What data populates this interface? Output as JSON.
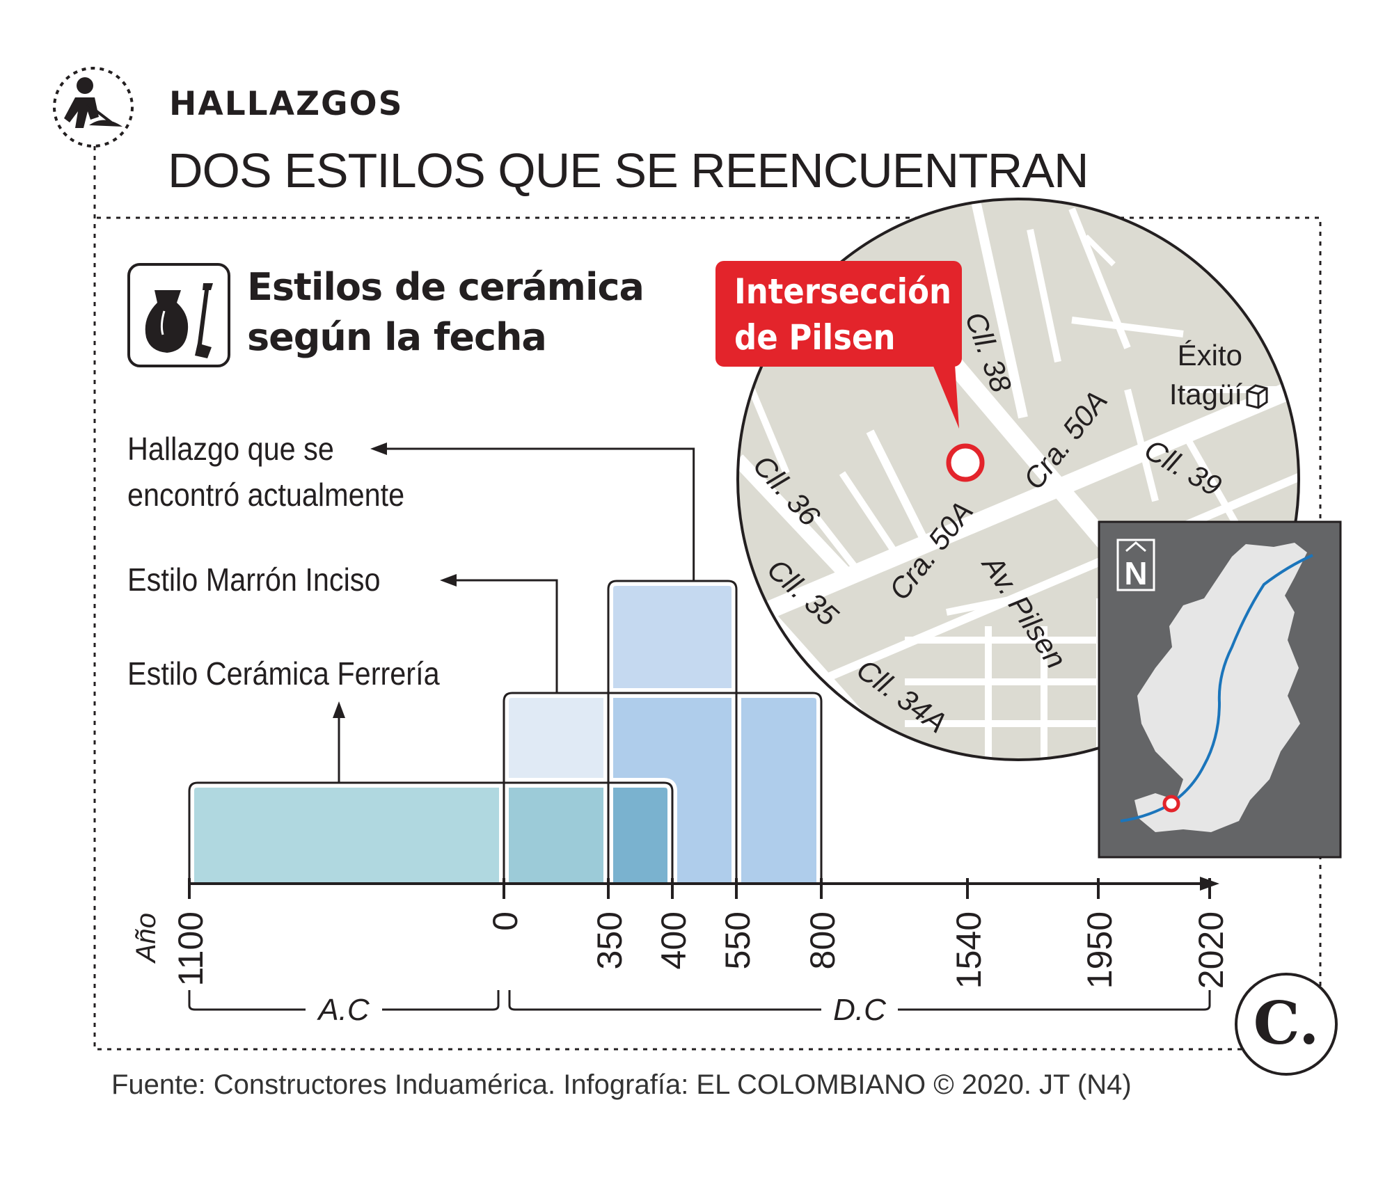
{
  "header": {
    "kicker": "HALLAZGOS",
    "headline": "DOS ESTILOS QUE SE REENCUENTRAN"
  },
  "subtitle": {
    "line1": "Estilos de cerámica",
    "line2": "según la fecha"
  },
  "legend": {
    "hallazgo_line1": "Hallazgo que se",
    "hallazgo_line2": "encontró actualmente",
    "marron": "Estilo Marrón Inciso",
    "ferreria": "Estilo Cerámica Ferrería"
  },
  "chart_data": {
    "type": "range-bars",
    "xlabel": "Año",
    "ticks": [
      {
        "value": -1100,
        "label": "1100"
      },
      {
        "value": 0,
        "label": "0"
      },
      {
        "value": 350,
        "label": "350"
      },
      {
        "value": 400,
        "label": "400"
      },
      {
        "value": 550,
        "label": "550"
      },
      {
        "value": 800,
        "label": "800"
      },
      {
        "value": 1540,
        "label": "1540"
      },
      {
        "value": 1950,
        "label": "1950"
      },
      {
        "value": 2020,
        "label": "2020"
      }
    ],
    "eras": [
      {
        "label": "A.C",
        "from": -1100,
        "to": 0
      },
      {
        "label": "D.C",
        "from": 0,
        "to": 2020
      }
    ],
    "series": [
      {
        "name": "Estilo Cerámica Ferrería",
        "from": -1100,
        "to": 400,
        "color": "#b0d8e0"
      },
      {
        "name": "Estilo Marrón Inciso",
        "from": 0,
        "to": 800,
        "color": "#e0eaf5"
      },
      {
        "name": "Hallazgo que se encontró actualmente",
        "from": 350,
        "to": 550,
        "color": "#c5d9f0"
      }
    ],
    "overlap_colors": {
      "ferreria_marron": "#9ccbd8",
      "ferreria_marron_hallazgo": "#7ab2cf",
      "marron_hallazgo": "#afcdeb"
    }
  },
  "map": {
    "callout_line1": "Intersección",
    "callout_line2": "de Pilsen",
    "streets": [
      "Cll. 38",
      "Cra. 50A",
      "Cll. 39",
      "Cll. 36",
      "Cra. 50A",
      "Cll. 35",
      "Av. Pilsen",
      "Cll. 34A"
    ],
    "poi_line1": "Éxito",
    "poi_line2": "Itagüí",
    "north": "N",
    "colors": {
      "map_bg": "#dcdbd2",
      "road": "#ffffff",
      "marker": "#e3242b",
      "inset_bg": "#646567",
      "inset_land": "#e6e6e6",
      "river": "#1b75bb"
    }
  },
  "brand": {
    "logo": "C."
  },
  "source": "Fuente: Constructores Induamérica. Infografía: EL COLOMBIANO © 2020. JT (N4)"
}
